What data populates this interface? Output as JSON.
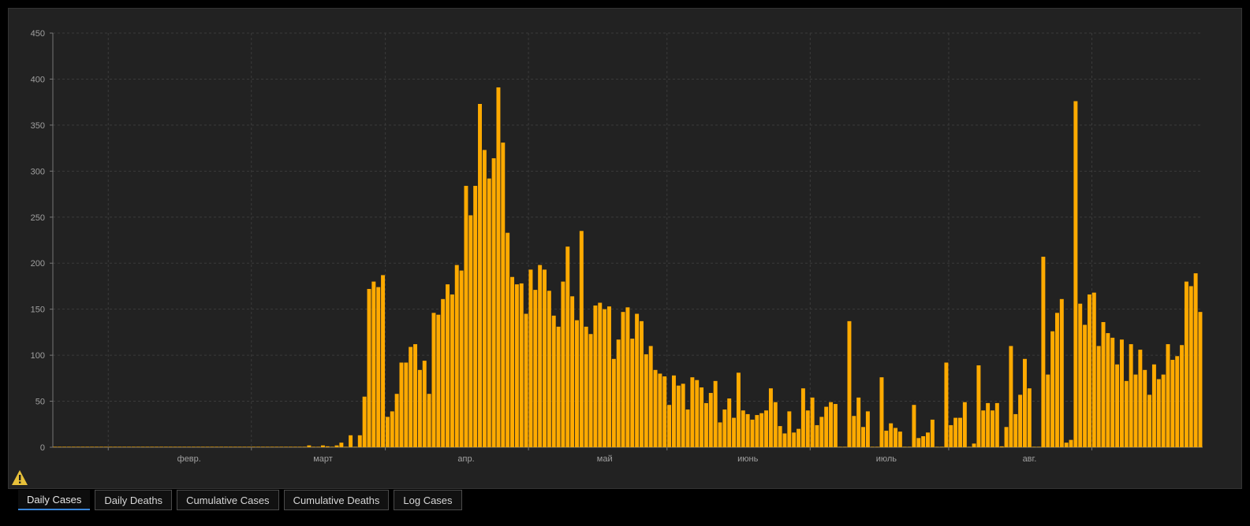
{
  "chart_data": {
    "type": "bar",
    "series_color": "#FFAA00",
    "grid": true,
    "ylim": [
      0,
      450
    ],
    "yticks": [
      0,
      50,
      100,
      150,
      200,
      250,
      300,
      350,
      400,
      450
    ],
    "x_start": "2020-01-03",
    "month_ticks": [
      {
        "date": "2020-02-01",
        "label": "февр."
      },
      {
        "date": "2020-03-01",
        "label": "март"
      },
      {
        "date": "2020-04-01",
        "label": "апр."
      },
      {
        "date": "2020-05-01",
        "label": "май"
      },
      {
        "date": "2020-06-01",
        "label": "июнь"
      },
      {
        "date": "2020-07-01",
        "label": "июль"
      },
      {
        "date": "2020-08-01",
        "label": "авг."
      }
    ],
    "values": [
      0,
      0,
      0,
      0,
      0,
      0,
      0,
      0,
      0,
      0,
      0,
      0,
      0,
      0,
      0,
      0,
      0,
      0,
      0,
      0,
      0,
      0,
      0,
      0,
      0,
      0,
      0,
      0,
      0,
      0,
      0,
      0,
      0,
      0,
      0,
      0,
      0,
      0,
      0,
      0,
      0,
      0,
      0,
      0,
      0,
      0,
      0,
      0,
      0,
      0,
      0,
      0,
      0,
      0,
      0,
      2,
      0,
      0,
      2,
      1,
      0,
      2,
      5,
      0,
      13,
      0,
      13,
      55,
      172,
      180,
      174,
      187,
      33,
      39,
      58,
      92,
      92,
      109,
      112,
      84,
      94,
      58,
      146,
      144,
      161,
      177,
      166,
      198,
      192,
      284,
      252,
      284,
      373,
      323,
      292,
      314,
      391,
      331,
      233,
      185,
      177,
      178,
      145,
      193,
      171,
      198,
      193,
      170,
      143,
      131,
      180,
      218,
      164,
      138,
      235,
      131,
      123,
      154,
      157,
      150,
      153,
      96,
      117,
      147,
      152,
      118,
      145,
      137,
      101,
      110,
      84,
      80,
      77,
      46,
      78,
      67,
      69,
      41,
      76,
      73,
      65,
      48,
      59,
      72,
      27,
      41,
      53,
      32,
      81,
      40,
      36,
      30,
      35,
      37,
      40,
      64,
      49,
      23,
      15,
      39,
      16,
      20,
      64,
      40,
      54,
      24,
      33,
      44,
      49,
      47,
      0,
      0,
      137,
      34,
      54,
      22,
      39,
      0,
      0,
      76,
      18,
      26,
      21,
      17,
      0,
      0,
      46,
      10,
      12,
      16,
      30,
      0,
      0,
      92,
      24,
      32,
      32,
      49,
      0,
      4,
      89,
      40,
      48,
      40,
      48,
      1,
      22,
      110,
      36,
      57,
      96,
      64,
      0,
      0,
      207,
      79,
      126,
      146,
      161,
      5,
      8,
      376,
      156,
      133,
      166,
      168,
      110,
      136,
      124,
      119,
      90,
      117,
      72,
      112,
      79,
      106,
      84,
      57,
      90,
      74,
      79,
      112,
      95,
      99,
      111,
      180,
      175,
      189,
      147
    ]
  },
  "tabs": [
    {
      "label": "Daily Cases",
      "active": true
    },
    {
      "label": "Daily Deaths",
      "active": false
    },
    {
      "label": "Cumulative Cases",
      "active": false
    },
    {
      "label": "Cumulative Deaths",
      "active": false
    },
    {
      "label": "Log Cases",
      "active": false
    }
  ],
  "warning_icon": "warning-triangle-icon",
  "colors": {
    "background": "#222222",
    "bar": "#FFAA00",
    "warning": "#E8C13A",
    "active_tab_underline": "#3A86D8"
  }
}
